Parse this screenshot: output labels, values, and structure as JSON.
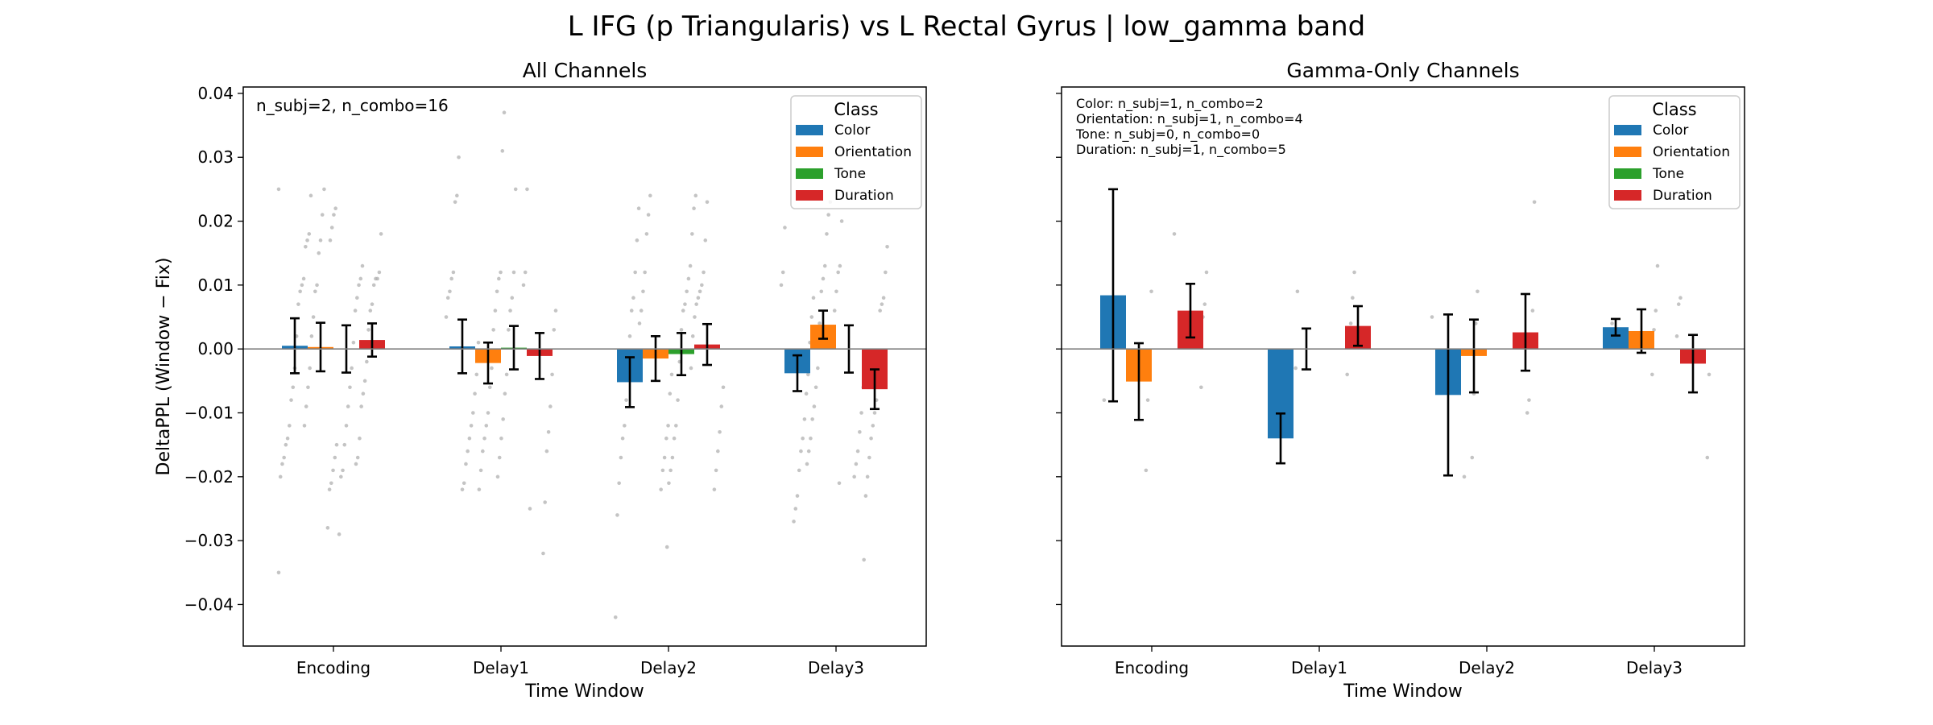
{
  "chart_data": {
    "title": "L IFG (p Triangularis) vs L Rectal Gyrus  |  low_gamma band",
    "type": "bar",
    "colors": {
      "Color": "#1f77b4",
      "Orientation": "#ff7f0e",
      "Tone": "#2ca02c",
      "Duration": "#d62728"
    },
    "legend_title": "Class",
    "legend_entries": [
      "Color",
      "Orientation",
      "Tone",
      "Duration"
    ],
    "legend_placement": "upper-right",
    "grid": false,
    "panels": [
      {
        "title": "All Channels",
        "xlabel": "Time Window",
        "ylabel": "DeltaPPL (Window − Fix)",
        "ylim": [
          -0.0465,
          0.041
        ],
        "yticks": [
          -0.04,
          -0.03,
          -0.02,
          -0.01,
          0.0,
          0.01,
          0.02,
          0.03,
          0.04
        ],
        "ytick_labels": [
          "−0.04",
          "−0.03",
          "−0.02",
          "−0.01",
          "0.00",
          "0.01",
          "0.02",
          "0.03",
          "0.04"
        ],
        "categories": [
          "Encoding",
          "Delay1",
          "Delay2",
          "Delay3"
        ],
        "annotations": [
          "n_subj=2, n_combo=16"
        ],
        "series": [
          {
            "name": "Color",
            "values": [
              0.0005,
              0.0004,
              -0.0052,
              -0.0038
            ],
            "err": [
              0.0043,
              0.0042,
              0.0039,
              0.0028
            ]
          },
          {
            "name": "Orientation",
            "values": [
              0.0003,
              -0.0022,
              -0.0015,
              0.0038
            ],
            "err": [
              0.0038,
              0.0032,
              0.0035,
              0.0022
            ]
          },
          {
            "name": "Tone",
            "values": [
              0.0,
              0.0002,
              -0.0008,
              0.0
            ],
            "err": [
              0.0037,
              0.0034,
              0.0033,
              0.0037
            ]
          },
          {
            "name": "Duration",
            "values": [
              0.0014,
              -0.0011,
              0.0007,
              -0.0063
            ],
            "err": [
              0.0026,
              0.0036,
              0.0032,
              0.0031
            ]
          }
        ],
        "scatter": [
          [
            [
              0.025,
              0.024,
              0.018,
              0.017,
              0.016,
              0.011,
              0.01,
              0.009,
              0.007,
              0.002,
              -0.003,
              -0.006,
              -0.008,
              -0.012,
              -0.014,
              -0.015,
              -0.017,
              -0.018,
              -0.02,
              -0.035
            ],
            [
              0.025,
              0.021,
              0.017,
              0.015,
              0.01,
              0.009,
              0.005,
              0.002,
              -0.003,
              -0.006,
              -0.009,
              -0.012,
              -0.015,
              -0.017,
              -0.019,
              -0.021,
              -0.022,
              -0.028
            ],
            [
              0.022,
              0.021,
              0.019,
              0.017,
              0.013,
              0.011,
              0.01,
              0.008,
              0.006,
              0.001,
              -0.003,
              -0.006,
              -0.009,
              -0.012,
              -0.015,
              -0.019,
              -0.02,
              -0.029
            ],
            [
              0.018,
              0.012,
              0.011,
              0.011,
              0.01,
              0.007,
              0.006,
              0.003,
              -0.002,
              -0.005,
              -0.007,
              -0.009,
              -0.014,
              -0.017,
              -0.018
            ]
          ],
          [
            [
              0.03,
              0.024,
              0.023,
              0.012,
              0.011,
              0.009,
              0.008,
              0.005,
              0.001,
              -0.004,
              -0.007,
              -0.01,
              -0.012,
              -0.014,
              -0.016,
              -0.018,
              -0.021,
              -0.022
            ],
            [
              0.037,
              0.031,
              0.012,
              0.011,
              0.009,
              0.006,
              0.003,
              -0.003,
              -0.006,
              -0.01,
              -0.012,
              -0.014,
              -0.016,
              -0.019,
              -0.022
            ],
            [
              0.025,
              0.012,
              0.008,
              0.006,
              0.003,
              -0.004,
              -0.007,
              -0.011,
              -0.014,
              -0.017,
              -0.02,
              -0.025
            ],
            [
              0.025,
              0.012,
              0.01,
              0.006,
              0.003,
              -0.004,
              -0.009,
              -0.013,
              -0.016,
              -0.024,
              -0.032
            ]
          ],
          [
            [
              0.022,
              0.017,
              0.012,
              0.008,
              0.006,
              0.002,
              -0.004,
              -0.008,
              -0.012,
              -0.014,
              -0.017,
              -0.021,
              -0.026,
              -0.042
            ],
            [
              0.024,
              0.021,
              0.018,
              0.012,
              0.009,
              0.006,
              0.004,
              -0.004,
              -0.007,
              -0.012,
              -0.014,
              -0.017,
              -0.019,
              -0.022
            ],
            [
              0.024,
              0.022,
              0.018,
              0.013,
              0.011,
              0.009,
              0.007,
              0.006,
              0.003,
              -0.002,
              -0.008,
              -0.012,
              -0.014,
              -0.017,
              -0.019,
              -0.021,
              -0.031
            ],
            [
              0.023,
              0.017,
              0.012,
              0.01,
              0.009,
              0.008,
              0.007,
              0.005,
              0.002,
              -0.003,
              -0.006,
              -0.009,
              -0.013,
              -0.016,
              -0.019,
              -0.022
            ]
          ],
          [
            [
              0.019,
              0.012,
              0.01,
              0.008,
              0.005,
              0.001,
              -0.004,
              -0.007,
              -0.011,
              -0.014,
              -0.016,
              -0.019,
              -0.023,
              -0.025,
              -0.027
            ],
            [
              0.023,
              0.021,
              0.018,
              0.013,
              0.011,
              0.009,
              0.004,
              -0.003,
              -0.006,
              -0.009,
              -0.011,
              -0.014,
              -0.016,
              -0.018,
              -0.021
            ],
            [
              0.02,
              0.013,
              0.012,
              0.009,
              0.006,
              0.003,
              -0.002,
              -0.006,
              -0.01,
              -0.013,
              -0.016,
              -0.018,
              -0.02
            ],
            [
              0.016,
              0.012,
              0.008,
              0.007,
              0.006,
              -0.004,
              -0.008,
              -0.01,
              -0.012,
              -0.014,
              -0.017,
              -0.02,
              -0.023,
              -0.033
            ]
          ]
        ]
      },
      {
        "title": "Gamma-Only Channels",
        "xlabel": "Time Window",
        "ylabel": "",
        "ylim": [
          -0.0465,
          0.041
        ],
        "yticks": [
          -0.04,
          -0.03,
          -0.02,
          -0.01,
          0.0,
          0.01,
          0.02,
          0.03,
          0.04
        ],
        "categories": [
          "Encoding",
          "Delay1",
          "Delay2",
          "Delay3"
        ],
        "annotations": [
          "Color: n_subj=1, n_combo=2",
          "Orientation: n_subj=1, n_combo=4",
          "Tone: n_subj=0, n_combo=0",
          "Duration: n_subj=1, n_combo=5"
        ],
        "series": [
          {
            "name": "Color",
            "values": [
              0.0084,
              -0.014,
              -0.0072,
              0.0034
            ],
            "err": [
              0.0166,
              0.0039,
              0.0126,
              0.0013
            ]
          },
          {
            "name": "Orientation",
            "values": [
              -0.0051,
              0.0,
              -0.0011,
              0.0028
            ],
            "err": [
              0.006,
              0.0032,
              0.0057,
              0.0034
            ]
          },
          {
            "name": "Tone",
            "values": [
              null,
              null,
              null,
              null
            ],
            "err": [
              null,
              null,
              null,
              null
            ]
          },
          {
            "name": "Duration",
            "values": [
              0.006,
              0.0036,
              0.0026,
              -0.0023
            ],
            "err": [
              0.0042,
              0.0031,
              0.006,
              0.0045
            ]
          }
        ],
        "scatter": [
          [
            [
              0.008,
              -0.008
            ],
            [
              0.009,
              -0.003,
              -0.008,
              -0.019
            ],
            [],
            [
              0.018,
              0.012,
              0.007,
              0.005,
              -0.006
            ]
          ],
          [
            [],
            [
              0.009,
              -0.003
            ],
            [],
            [
              0.012,
              0.008,
              0.004,
              0.002,
              -0.004
            ]
          ],
          [
            [
              0.005,
              -0.02
            ],
            [
              0.009,
              0.004,
              -0.007,
              -0.017
            ],
            [],
            [
              0.023,
              0.006,
              0.002,
              -0.008,
              -0.01
            ]
          ],
          [
            [
              0.004,
              0.003
            ],
            [
              0.013,
              0.006,
              0.003,
              -0.004
            ],
            [],
            [
              0.008,
              0.007,
              0.002,
              -0.004,
              -0.017
            ]
          ]
        ]
      }
    ]
  }
}
